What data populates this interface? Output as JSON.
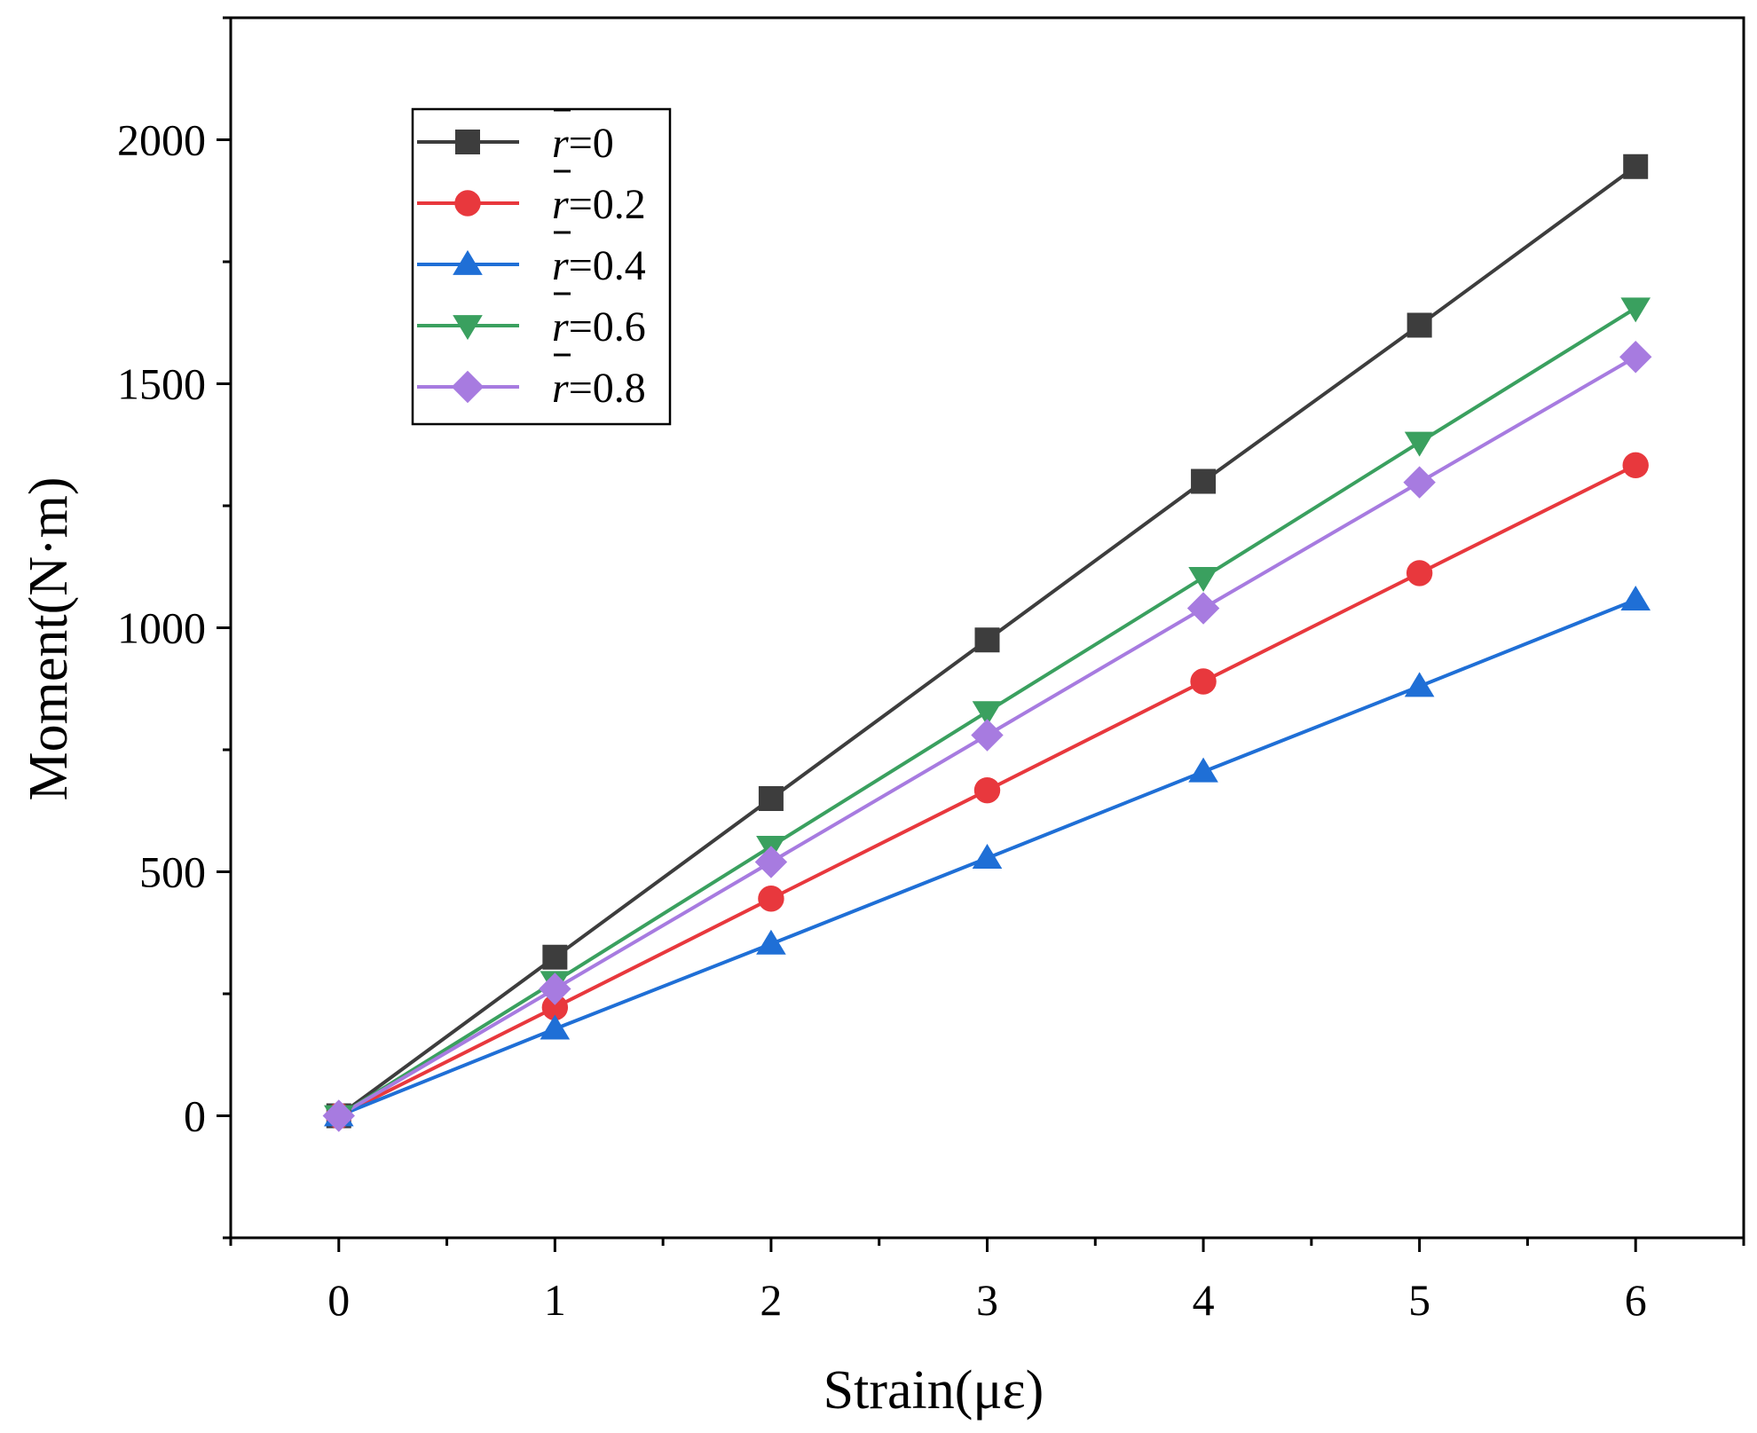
{
  "chart_data": {
    "type": "line",
    "title": "",
    "xlabel": "Strain(με)",
    "ylabel": "Moment(N·m)",
    "x": [
      0,
      1,
      2,
      3,
      4,
      5,
      6
    ],
    "xlim": [
      -0.5,
      6.5
    ],
    "ylim": [
      -250,
      2250
    ],
    "xticks": [
      "0",
      "1",
      "2",
      "3",
      "4",
      "5",
      "6"
    ],
    "yticks": [
      0,
      500,
      1000,
      1500,
      2000
    ],
    "ytick_labels": [
      "0",
      "500",
      "1000",
      "1500",
      "2000"
    ],
    "grid": false,
    "legend_position": "top-left",
    "series": [
      {
        "name": "r=0",
        "symbol": "r",
        "value_label": "=0",
        "color": "#3d3d3d",
        "marker": "square",
        "values": [
          0,
          325,
          650,
          975,
          1300,
          1620,
          1945
        ]
      },
      {
        "name": "r=0.2",
        "symbol": "r",
        "value_label": "=0.2",
        "color": "#e8383d",
        "marker": "circle",
        "values": [
          0,
          222,
          445,
          667,
          890,
          1112,
          1333
        ]
      },
      {
        "name": "r=0.4",
        "symbol": "r",
        "value_label": "=0.4",
        "color": "#1f6fd6",
        "marker": "triangle-up",
        "values": [
          0,
          178,
          352,
          528,
          705,
          880,
          1057
        ]
      },
      {
        "name": "r=0.6",
        "symbol": "r",
        "value_label": "=0.6",
        "color": "#3aa05f",
        "marker": "triangle-down",
        "values": [
          0,
          275,
          552,
          828,
          1103,
          1380,
          1655
        ]
      },
      {
        "name": "r=0.8",
        "symbol": "r",
        "value_label": "=0.8",
        "color": "#a77be0",
        "marker": "diamond",
        "values": [
          0,
          260,
          520,
          780,
          1040,
          1298,
          1555
        ]
      }
    ]
  }
}
